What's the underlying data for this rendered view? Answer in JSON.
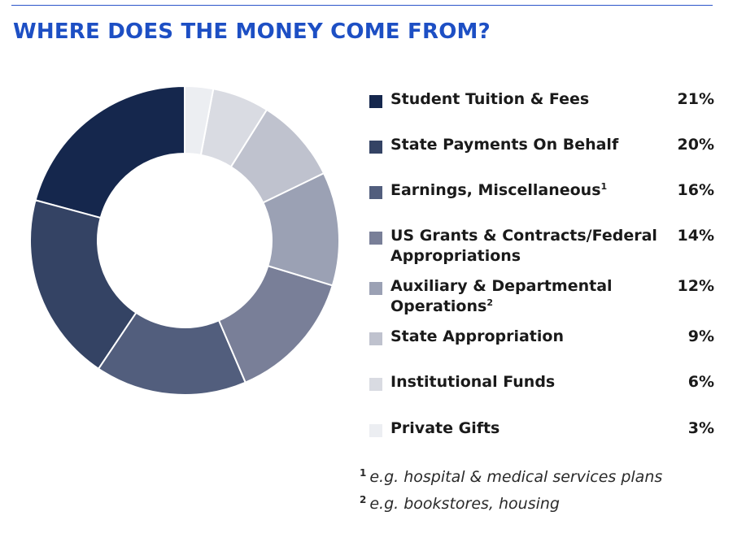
{
  "header": {
    "title": "WHERE DOES THE MONEY COME FROM?"
  },
  "colors": {
    "title": "#1d4fc4",
    "rule": "#2c55c9",
    "text": "#1a1a1a"
  },
  "chart_data": {
    "type": "pie",
    "variant": "donut",
    "title": "WHERE DOES THE MONEY COME FROM?",
    "start_angle": "12 o'clock",
    "direction": "counter-clockwise",
    "legend_position": "right",
    "categories": [
      "Student Tuition & Fees",
      "State Payments On Behalf",
      "Earnings, Miscellaneous",
      "US Grants & Contracts/Federal Appropriations",
      "Auxiliary & Departmental Operations",
      "State Appropriation",
      "Institutional Funds",
      "Private Gifts"
    ],
    "values": [
      21,
      20,
      16,
      14,
      12,
      9,
      6,
      3
    ],
    "value_labels": [
      "21%",
      "20%",
      "16%",
      "14%",
      "12%",
      "9%",
      "6%",
      "3%"
    ],
    "footnote_refs": [
      "",
      "",
      "1",
      "",
      "2",
      "",
      "",
      ""
    ],
    "colors": [
      "#15274d",
      "#344364",
      "#525e7d",
      "#797f98",
      "#9ba1b4",
      "#bfc2ce",
      "#d9dbe2",
      "#eceef2"
    ]
  },
  "footnotes": [
    {
      "mark": "1",
      "text": "e.g. hospital & medical services plans"
    },
    {
      "mark": "2",
      "text": "e.g. bookstores, housing"
    }
  ]
}
